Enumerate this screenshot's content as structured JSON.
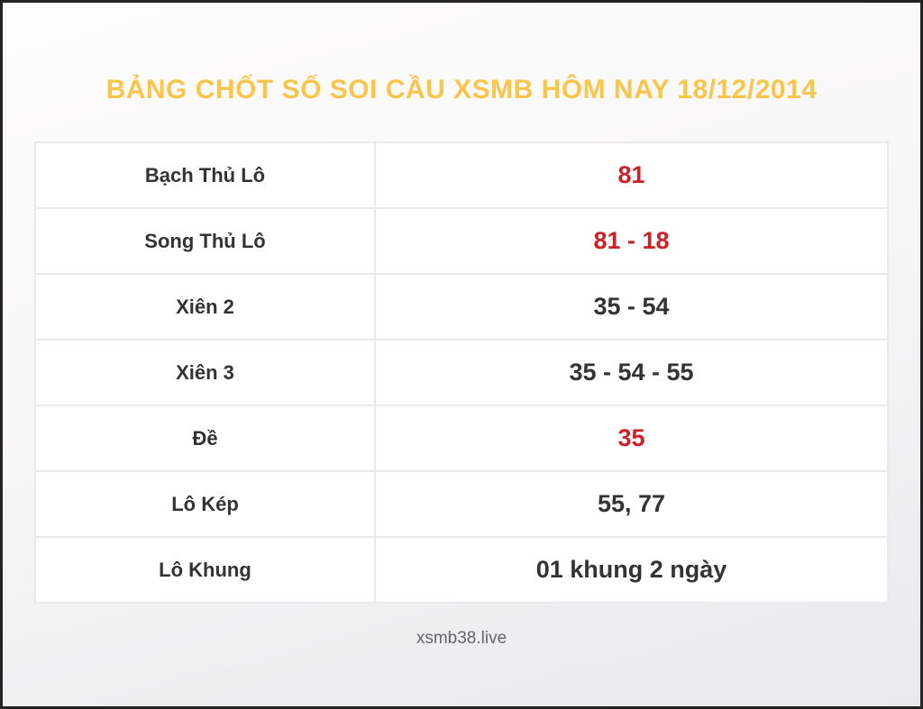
{
  "page": {
    "title": "BẢNG CHỐT SỐ SOI CẦU XSMB HÔM NAY 18/12/2014",
    "footer": "xsmb38.live"
  },
  "colors": {
    "title": "#f9c64b",
    "highlight": "#cb2229",
    "text": "#333333",
    "border": "#e9e9eb",
    "footer": "#63666b"
  },
  "table": {
    "rows": [
      {
        "label": "Bạch Thủ Lô",
        "value": "81",
        "highlight": true
      },
      {
        "label": "Song Thủ Lô",
        "value": "81 - 18",
        "highlight": true
      },
      {
        "label": "Xiên 2",
        "value": "35 - 54",
        "highlight": false
      },
      {
        "label": "Xiên 3",
        "value": "35 - 54 - 55",
        "highlight": false
      },
      {
        "label": "Đề",
        "value": "35",
        "highlight": true
      },
      {
        "label": "Lô Kép",
        "value": "55, 77",
        "highlight": false
      },
      {
        "label": "Lô Khung",
        "value": "01 khung 2 ngày",
        "highlight": false
      }
    ]
  }
}
